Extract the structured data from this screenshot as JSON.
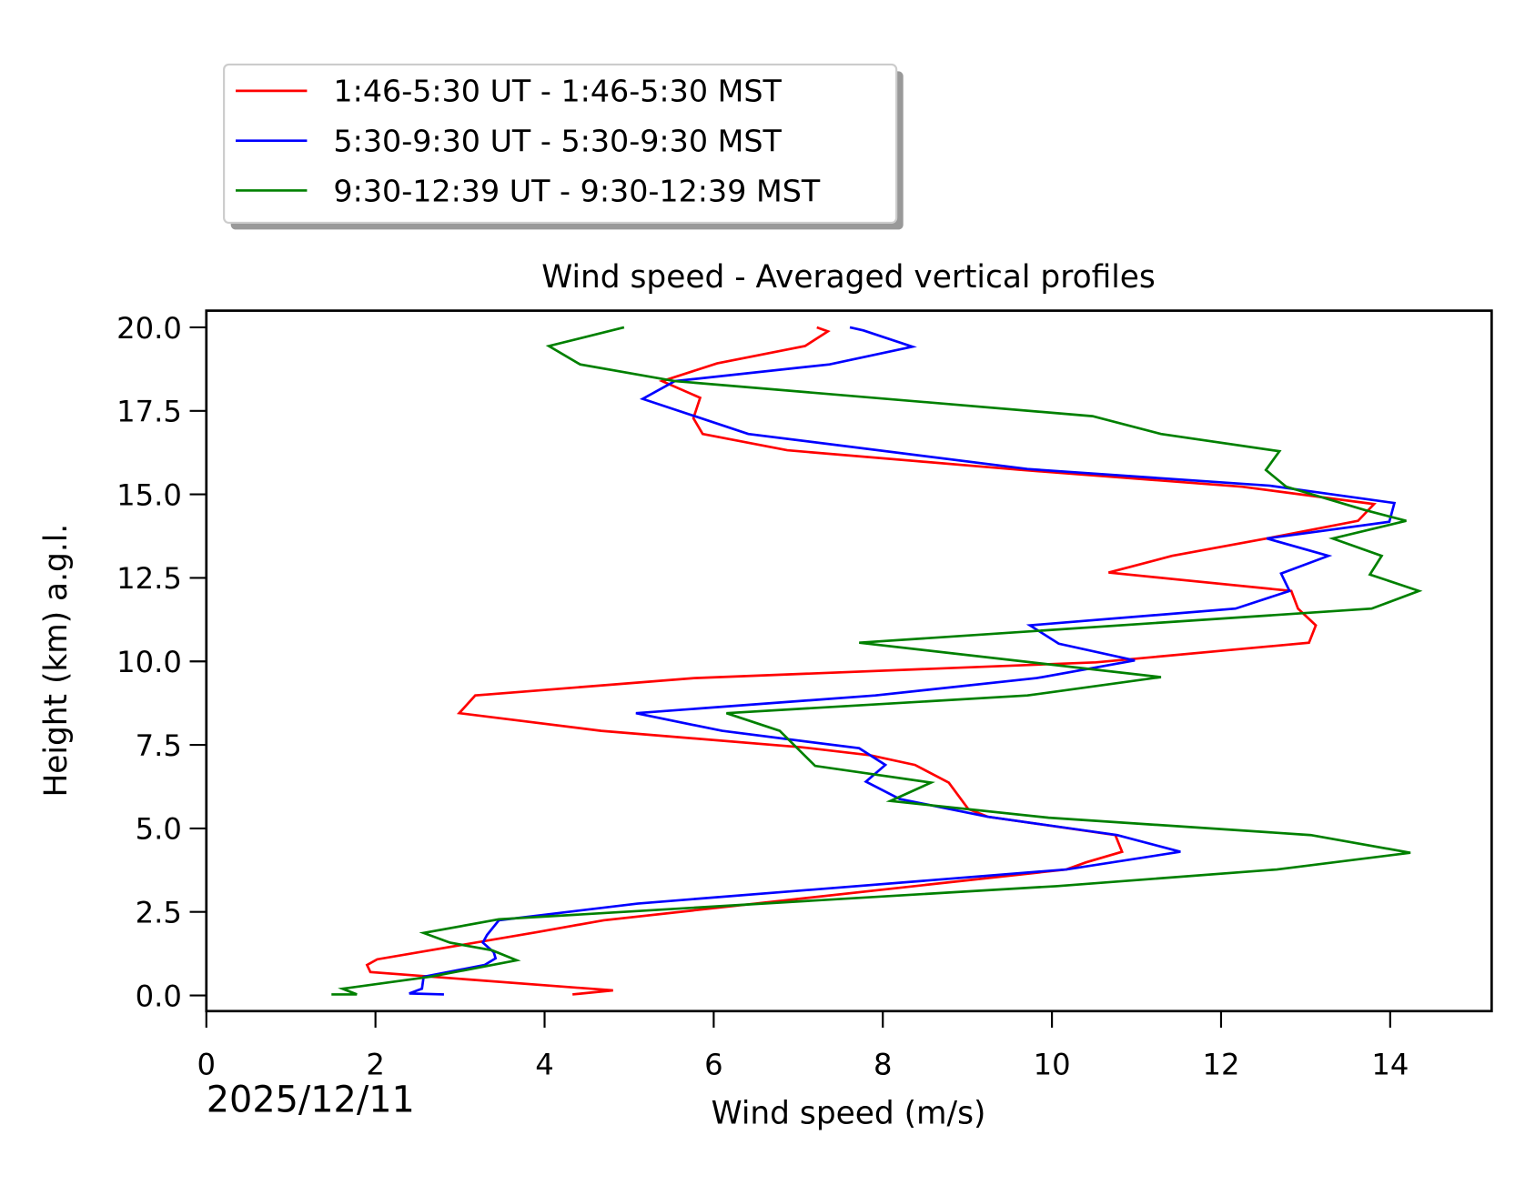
{
  "chart_data": {
    "type": "line",
    "title": "Wind speed - Averaged vertical profiles",
    "xlabel": "Wind speed (m/s)",
    "ylabel": "Height (km) a.g.l.",
    "date": "2025/12/11",
    "xlim": [
      0,
      15.2
    ],
    "ylim": [
      -0.47,
      20.5
    ],
    "xticks": [
      0,
      2,
      4,
      6,
      8,
      10,
      12,
      14
    ],
    "yticks": [
      {
        "value": 0,
        "label": "0.0"
      },
      2.5,
      {
        "value": 5,
        "label": "5.0"
      },
      7.5,
      {
        "value": 10,
        "label": "10.0"
      },
      12.5,
      {
        "value": 15,
        "label": "15.0"
      },
      17.5,
      {
        "value": 20,
        "label": "20.0"
      }
    ],
    "legend": "upper left",
    "series": [
      {
        "name": "1:46-5:30 UT - 1:46-5:30 MST",
        "color": "#ff0000",
        "values": [
          4.33,
          4.81,
          1.94,
          1.9,
          2.02,
          3.92,
          4.7,
          10.17,
          10.4,
          10.83,
          10.75,
          9.24,
          9.01,
          8.78,
          8.38,
          7.85,
          7.04,
          4.67,
          2.99,
          3.18,
          5.77,
          10.52,
          13.04,
          13.12,
          12.91,
          12.83,
          10.67,
          11.42,
          12.54,
          13.62,
          13.81,
          12.25,
          9.65,
          6.87,
          5.87,
          5.76,
          5.84,
          5.39,
          6.04,
          7.08,
          7.35,
          7.22
        ],
        "heights": [
          0.03,
          0.15,
          0.7,
          0.91,
          1.08,
          1.9,
          2.25,
          3.77,
          3.98,
          4.3,
          4.8,
          5.35,
          5.58,
          6.37,
          6.9,
          7.19,
          7.43,
          7.92,
          8.45,
          8.98,
          9.5,
          9.97,
          10.56,
          11.08,
          11.58,
          12.11,
          12.66,
          13.16,
          13.68,
          14.21,
          14.71,
          15.23,
          15.73,
          16.32,
          16.81,
          17.28,
          17.89,
          18.39,
          18.92,
          19.44,
          19.88,
          20.0
        ]
      },
      {
        "name": "5:30-9:30 UT - 5:30-9:30 MST",
        "color": "#0000ff",
        "values": [
          2.81,
          2.4,
          2.55,
          2.57,
          3.29,
          3.42,
          3.4,
          3.27,
          3.32,
          3.46,
          5.1,
          10.17,
          11.52,
          10.77,
          9.24,
          8.2,
          7.8,
          8.03,
          7.72,
          6.1,
          5.08,
          7.91,
          9.82,
          10.98,
          10.08,
          9.74,
          12.17,
          12.81,
          12.71,
          13.27,
          12.54,
          13.99,
          14.05,
          12.58,
          9.71,
          6.41,
          5.16,
          5.54,
          7.37,
          8.35,
          7.77,
          7.61
        ],
        "heights": [
          0.03,
          0.06,
          0.2,
          0.56,
          0.91,
          1.11,
          1.29,
          1.58,
          1.81,
          2.25,
          2.75,
          3.77,
          4.3,
          4.8,
          5.35,
          5.88,
          6.4,
          6.9,
          7.4,
          7.92,
          8.45,
          8.98,
          9.5,
          10.03,
          10.53,
          11.08,
          11.58,
          12.11,
          12.63,
          13.16,
          13.68,
          14.18,
          14.74,
          15.26,
          15.76,
          16.81,
          17.86,
          18.39,
          18.89,
          19.42,
          19.91,
          20.0
        ]
      },
      {
        "name": "9:30-12:39 UT - 9:30-12:39 MST",
        "color": "#008000",
        "values": [
          1.48,
          1.78,
          1.61,
          2.65,
          3.67,
          3.38,
          2.88,
          2.57,
          3.46,
          10.05,
          12.66,
          14.24,
          13.06,
          9.96,
          8.09,
          8.57,
          7.2,
          6.78,
          6.15,
          9.71,
          11.29,
          7.72,
          13.78,
          14.34,
          13.76,
          13.9,
          13.32,
          14.19,
          13.7,
          12.77,
          12.53,
          12.69,
          11.29,
          10.48,
          5.54,
          4.42,
          4.05,
          4.94
        ],
        "heights": [
          0.03,
          0.03,
          0.2,
          0.56,
          1.05,
          1.35,
          1.58,
          1.87,
          2.28,
          3.27,
          3.77,
          4.27,
          4.8,
          5.32,
          5.82,
          6.37,
          6.87,
          7.92,
          8.45,
          8.98,
          9.53,
          10.56,
          11.58,
          12.11,
          12.6,
          13.16,
          13.68,
          14.21,
          14.53,
          15.23,
          15.73,
          16.29,
          16.81,
          17.34,
          18.39,
          18.89,
          19.44,
          20.0
        ]
      }
    ]
  }
}
